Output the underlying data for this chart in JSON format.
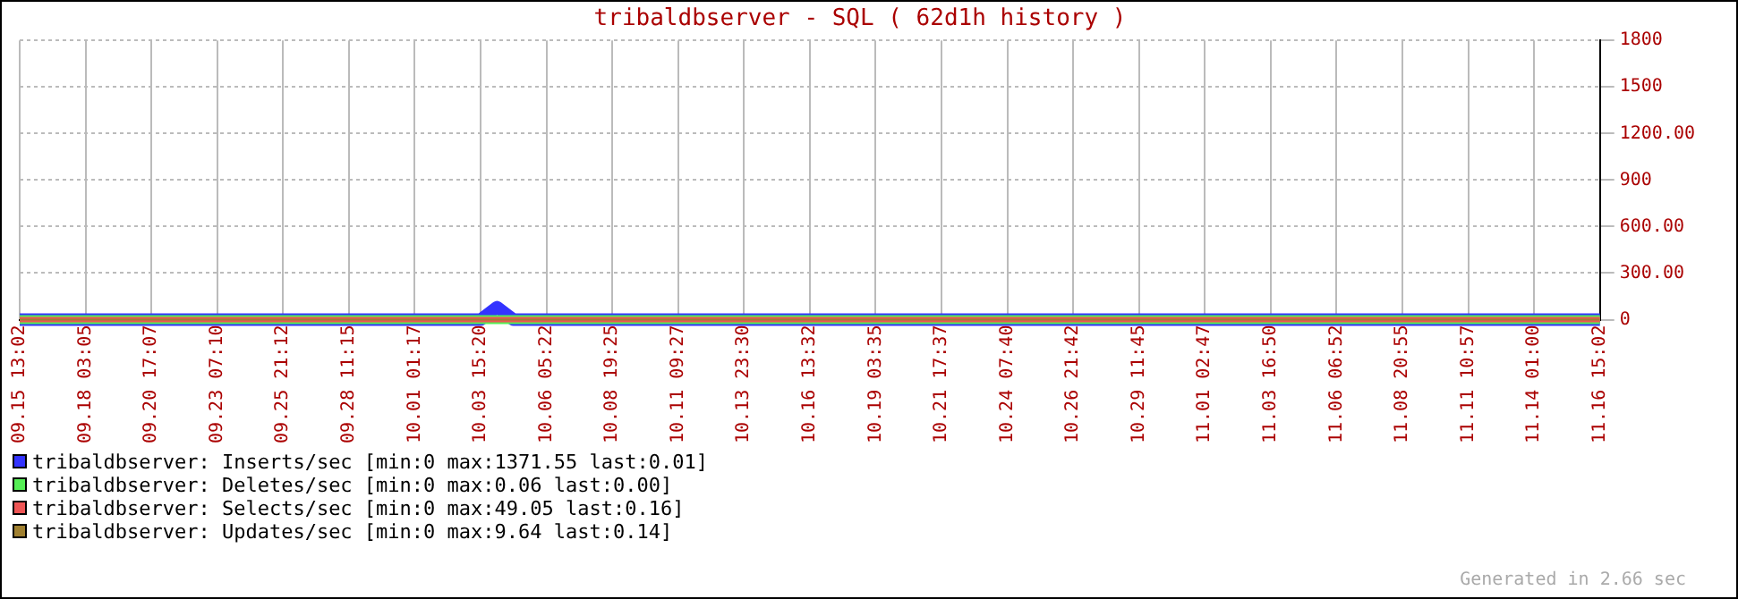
{
  "chart_data": {
    "type": "line",
    "title": "tribaldbserver - SQL ( 62d1h history )",
    "categories": [
      "09.15 13:02",
      null,
      null,
      null,
      "09.18 03:05",
      null,
      null,
      null,
      "09.20 17:07",
      null,
      null,
      null,
      "09.23 07:10",
      null,
      null,
      null,
      "09.25 21:12",
      null,
      null,
      null,
      "09.28 11:15",
      null,
      null,
      null,
      "10.01 01:17",
      null,
      null,
      null,
      "10.03 15:20",
      null,
      null,
      null,
      "10.06 05:22",
      null,
      null,
      null,
      "10.08 19:25",
      null,
      null,
      null,
      "10.11 09:27",
      null,
      null,
      null,
      "10.13 23:30",
      null,
      null,
      null,
      "10.16 13:32",
      null,
      null,
      null,
      "10.19 03:35",
      null,
      null,
      null,
      "10.21 17:37",
      null,
      null,
      null,
      "10.24 07:40",
      null,
      null,
      null,
      "10.26 21:42",
      null,
      null,
      null,
      "10.29 11:45",
      null,
      null,
      null,
      "11.01 02:47",
      null,
      null,
      null,
      "11.03 16:50",
      null,
      null,
      null,
      "11.06 06:52",
      null,
      null,
      null,
      "11.08 20:55",
      null,
      null,
      null,
      "11.11 10:57",
      null,
      null,
      null,
      "11.14 01:00",
      null,
      null,
      null,
      "11.16 15:02"
    ],
    "series": [
      {
        "name": "tribaldbserver: Inserts/sec [min:0 max:1371.55 last:0.01]",
        "color": "#3333ff",
        "values": [
          0,
          0,
          0,
          0,
          0,
          0,
          0,
          0,
          0,
          0,
          0,
          0,
          0,
          0,
          0,
          0,
          0,
          0,
          0,
          0,
          0,
          0,
          0,
          0,
          0,
          0,
          0,
          0,
          0,
          80,
          0,
          0,
          0,
          0,
          0,
          0,
          0,
          0,
          0,
          0,
          0,
          0,
          0,
          0,
          0,
          0,
          0,
          0,
          0,
          0,
          0,
          0,
          0,
          0,
          0,
          0,
          0,
          0,
          0,
          0,
          0,
          0,
          0,
          0,
          0,
          0,
          0,
          0,
          0,
          0,
          0,
          0,
          0,
          0,
          0,
          0,
          0,
          0,
          0,
          0,
          0,
          0,
          0,
          0,
          0,
          0,
          0,
          0,
          0,
          0,
          0,
          0,
          0,
          0,
          0,
          0,
          0
        ]
      },
      {
        "name": "tribaldbserver: Deletes/sec [min:0 max:0.06 last:0.00]",
        "color": "#55ee55",
        "values": [
          0,
          0,
          0,
          0,
          0,
          0,
          0,
          0,
          0,
          0,
          0,
          0,
          0,
          0,
          0,
          0,
          0,
          0,
          0,
          0,
          0,
          0,
          0,
          0,
          0,
          0,
          0,
          0,
          0,
          0,
          0,
          0,
          0,
          0,
          0,
          0,
          0,
          0,
          0,
          0,
          0,
          0,
          0,
          0,
          0,
          0,
          0,
          0,
          0,
          0,
          0,
          0,
          0,
          0,
          0,
          0,
          0,
          0,
          0,
          0,
          0,
          0,
          0,
          0,
          0,
          0,
          0,
          0,
          0,
          0,
          0,
          0,
          0,
          0,
          0,
          0,
          0,
          0,
          0,
          0,
          0,
          0,
          0,
          0,
          0,
          0,
          0,
          0,
          0,
          0,
          0,
          0,
          0,
          0,
          0,
          0,
          0
        ]
      },
      {
        "name": "tribaldbserver: Selects/sec [min:0 max:49.05 last:0.16]",
        "color": "#ee5555",
        "values": [
          0,
          0,
          0,
          0,
          0,
          0,
          0,
          0,
          0,
          0,
          0,
          0,
          0,
          0,
          0,
          0,
          0,
          0,
          0,
          0,
          0,
          0,
          0,
          0,
          0,
          0,
          0,
          0,
          0,
          0,
          0,
          0,
          0,
          0,
          0,
          0,
          0,
          0,
          0,
          0,
          0,
          0,
          0,
          0,
          0,
          0,
          0,
          0,
          0,
          0,
          0,
          0,
          0,
          0,
          0,
          0,
          0,
          0,
          0,
          0,
          0,
          0,
          0,
          0,
          0,
          0,
          0,
          0,
          0,
          0,
          0,
          0,
          0,
          0,
          0,
          0,
          0,
          0,
          0,
          0,
          0,
          0,
          0,
          0,
          0,
          0,
          0,
          0,
          0,
          0,
          0,
          0,
          0,
          0,
          0,
          0,
          0
        ]
      },
      {
        "name": "tribaldbserver: Updates/sec [min:0 max:9.64 last:0.14]",
        "color": "#a08030",
        "values": [
          0,
          0,
          0,
          0,
          0,
          0,
          0,
          0,
          0,
          0,
          0,
          0,
          0,
          0,
          0,
          0,
          0,
          0,
          0,
          0,
          0,
          0,
          0,
          0,
          0,
          0,
          0,
          0,
          0,
          0,
          0,
          0,
          0,
          0,
          0,
          0,
          0,
          0,
          0,
          0,
          0,
          0,
          0,
          0,
          0,
          0,
          0,
          0,
          0,
          0,
          0,
          0,
          0,
          0,
          0,
          0,
          0,
          0,
          0,
          0,
          0,
          0,
          0,
          0,
          0,
          0,
          0,
          0,
          0,
          0,
          0,
          0,
          0,
          0,
          0,
          0,
          0,
          0,
          0,
          0,
          0,
          0,
          0,
          0,
          0,
          0,
          0,
          0,
          0,
          0,
          0,
          0,
          0,
          0,
          0,
          0,
          0
        ]
      }
    ],
    "ylim": [
      0,
      1800
    ],
    "yticks": [
      0,
      {
        "value": 300,
        "label": "300.00"
      },
      {
        "value": 600,
        "label": "600.00"
      },
      900,
      {
        "value": 1200,
        "label": "1200.00"
      },
      1500,
      1800
    ],
    "grid": true,
    "legend": "bottom left",
    "marker": "none",
    "line_style": "solid",
    "annotations": [
      "Generated in 2.66 sec"
    ]
  }
}
